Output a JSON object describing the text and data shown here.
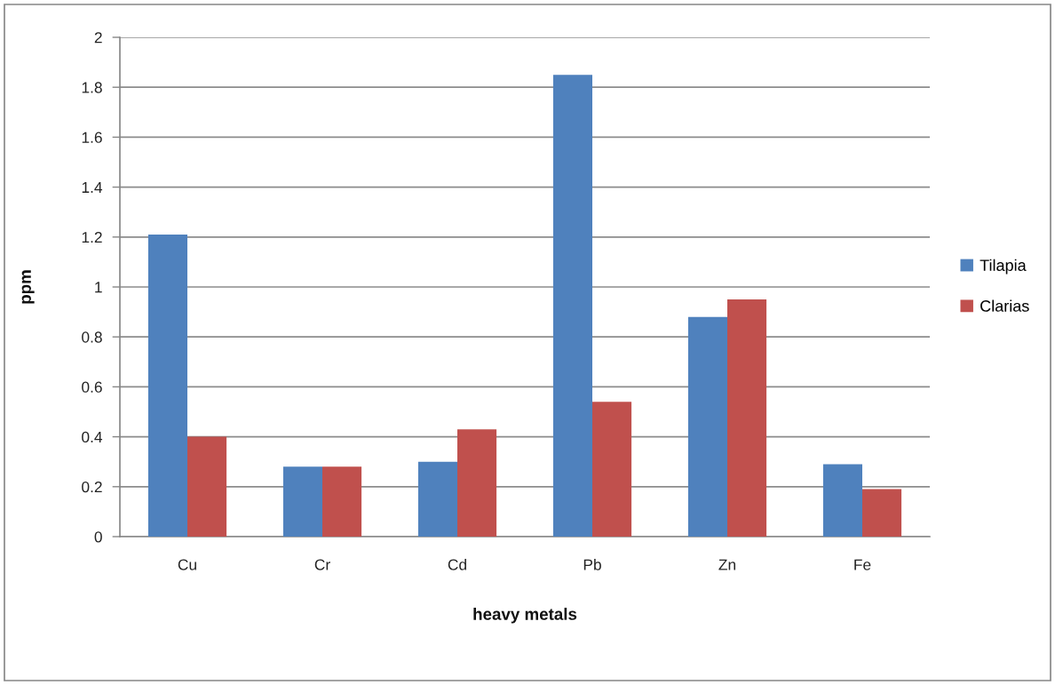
{
  "chart_data": {
    "type": "bar",
    "xlabel": "heavy metals",
    "ylabel": "ppm",
    "categories": [
      "Cu",
      "Cr",
      "Cd",
      "Pb",
      "Zn",
      "Fe"
    ],
    "series": [
      {
        "name": "Tilapia",
        "color": "#4f81bd",
        "values": [
          1.21,
          0.28,
          0.3,
          1.85,
          0.88,
          0.29
        ]
      },
      {
        "name": "Clarias",
        "color": "#c0504d",
        "values": [
          0.4,
          0.28,
          0.43,
          0.54,
          0.95,
          0.19
        ]
      }
    ],
    "ylim": [
      0,
      2
    ],
    "yticks": [
      0,
      {
        "value": 0.2,
        "label": "0.2"
      },
      {
        "value": 0.4,
        "label": "0.4"
      },
      {
        "value": 0.6,
        "label": "0.6"
      },
      {
        "value": 0.8,
        "label": "0.8"
      },
      1,
      {
        "value": 1.2,
        "label": "1.2"
      },
      {
        "value": 1.4,
        "label": "1.4"
      },
      {
        "value": 1.6,
        "label": "1.6"
      },
      {
        "value": 1.8,
        "label": "1.8"
      },
      2
    ],
    "grid": "y",
    "legend": "right"
  }
}
